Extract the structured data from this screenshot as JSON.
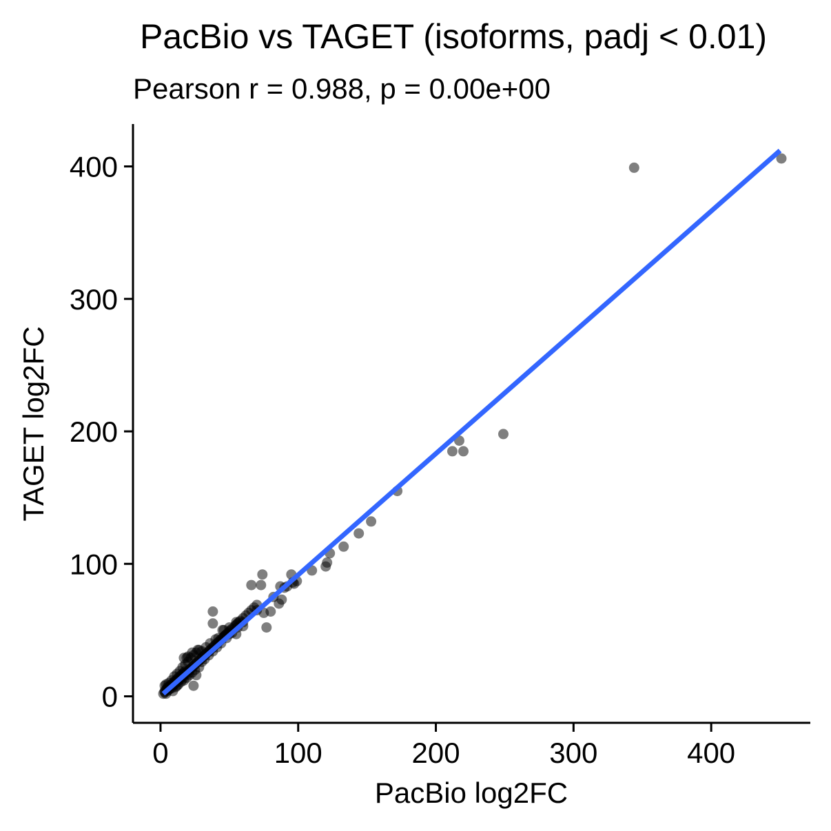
{
  "chart_data": {
    "type": "scatter",
    "title": "PacBio vs TAGET (isoforms, padj < 0.01)",
    "subtitle": "Pearson r = 0.988, p = 0.00e+00",
    "xlabel": "PacBio log2FC",
    "ylabel": "TAGET log2FC",
    "xlim": [
      -20,
      472
    ],
    "ylim": [
      -20,
      432
    ],
    "xticks": [
      0,
      100,
      200,
      300,
      400
    ],
    "yticks": [
      0,
      100,
      200,
      300,
      400
    ],
    "xtick_labels": [
      "0",
      "100",
      "200",
      "300",
      "400"
    ],
    "ytick_labels": [
      "0",
      "100",
      "200",
      "300",
      "400"
    ],
    "grid": false,
    "legend": "none",
    "point_color": "#000000",
    "point_opacity": 0.5,
    "fit_line": {
      "color": "#3366FF",
      "x": [
        2,
        450
      ],
      "y": [
        2,
        412
      ]
    },
    "points": [
      [
        2,
        2
      ],
      [
        3,
        3
      ],
      [
        3,
        4
      ],
      [
        4,
        2
      ],
      [
        4,
        5
      ],
      [
        5,
        4
      ],
      [
        5,
        6
      ],
      [
        6,
        5
      ],
      [
        6,
        7
      ],
      [
        7,
        6
      ],
      [
        7,
        8
      ],
      [
        8,
        6
      ],
      [
        8,
        9
      ],
      [
        9,
        8
      ],
      [
        9,
        10
      ],
      [
        10,
        9
      ],
      [
        10,
        11
      ],
      [
        11,
        10
      ],
      [
        11,
        12
      ],
      [
        12,
        11
      ],
      [
        12,
        13
      ],
      [
        13,
        12
      ],
      [
        13,
        14
      ],
      [
        14,
        13
      ],
      [
        14,
        15
      ],
      [
        15,
        14
      ],
      [
        15,
        16
      ],
      [
        16,
        15
      ],
      [
        16,
        17
      ],
      [
        17,
        16
      ],
      [
        17,
        18
      ],
      [
        18,
        17
      ],
      [
        18,
        19
      ],
      [
        19,
        18
      ],
      [
        20,
        19
      ],
      [
        21,
        20
      ],
      [
        22,
        21
      ],
      [
        23,
        22
      ],
      [
        24,
        23
      ],
      [
        25,
        24
      ],
      [
        26,
        25
      ],
      [
        27,
        26
      ],
      [
        28,
        27
      ],
      [
        29,
        28
      ],
      [
        30,
        29
      ],
      [
        31,
        30
      ],
      [
        32,
        31
      ],
      [
        33,
        32
      ],
      [
        34,
        33
      ],
      [
        35,
        34
      ],
      [
        36,
        35
      ],
      [
        37,
        36
      ],
      [
        38,
        37
      ],
      [
        39,
        38
      ],
      [
        40,
        39
      ],
      [
        41,
        40
      ],
      [
        42,
        41
      ],
      [
        43,
        42
      ],
      [
        44,
        43
      ],
      [
        45,
        44
      ],
      [
        46,
        45
      ],
      [
        47,
        46
      ],
      [
        48,
        47
      ],
      [
        49,
        48
      ],
      [
        50,
        49
      ],
      [
        51,
        50
      ],
      [
        52,
        51
      ],
      [
        54,
        53
      ],
      [
        55,
        54
      ],
      [
        57,
        56
      ],
      [
        58,
        57
      ],
      [
        60,
        59
      ],
      [
        62,
        61
      ],
      [
        64,
        63
      ],
      [
        66,
        65
      ],
      [
        68,
        67
      ],
      [
        70,
        69
      ],
      [
        3,
        8
      ],
      [
        4,
        9
      ],
      [
        5,
        7
      ],
      [
        6,
        10
      ],
      [
        8,
        12
      ],
      [
        10,
        15
      ],
      [
        12,
        17
      ],
      [
        14,
        19
      ],
      [
        16,
        22
      ],
      [
        18,
        24
      ],
      [
        20,
        26
      ],
      [
        22,
        29
      ],
      [
        24,
        31
      ],
      [
        26,
        33
      ],
      [
        28,
        35
      ],
      [
        17,
        29
      ],
      [
        19,
        29
      ],
      [
        20,
        30
      ],
      [
        23,
        33
      ],
      [
        27,
        35
      ],
      [
        30,
        34
      ],
      [
        33,
        37
      ],
      [
        36,
        40
      ],
      [
        40,
        43
      ],
      [
        42,
        44
      ],
      [
        46,
        50
      ],
      [
        50,
        52
      ],
      [
        55,
        56
      ],
      [
        56,
        55
      ],
      [
        9,
        4
      ],
      [
        11,
        7
      ],
      [
        13,
        9
      ],
      [
        15,
        11
      ],
      [
        17,
        12
      ],
      [
        19,
        14
      ],
      [
        21,
        16
      ],
      [
        23,
        18
      ],
      [
        25,
        20
      ],
      [
        28,
        22
      ],
      [
        30,
        26
      ],
      [
        32,
        28
      ],
      [
        35,
        31
      ],
      [
        38,
        34
      ],
      [
        41,
        37
      ],
      [
        44,
        40
      ],
      [
        48,
        44
      ],
      [
        52,
        48
      ],
      [
        56,
        52
      ],
      [
        60,
        56
      ],
      [
        12,
        8
      ],
      [
        16,
        13
      ],
      [
        20,
        17
      ],
      [
        24,
        8
      ],
      [
        26,
        16
      ],
      [
        38,
        64
      ],
      [
        38,
        55
      ],
      [
        45,
        50
      ],
      [
        47,
        46
      ],
      [
        50,
        47
      ],
      [
        55,
        47
      ],
      [
        60,
        53
      ],
      [
        66,
        84
      ],
      [
        73,
        84
      ],
      [
        74,
        92
      ],
      [
        70,
        65
      ],
      [
        75,
        63
      ],
      [
        77,
        52
      ],
      [
        80,
        64
      ],
      [
        82,
        75
      ],
      [
        86,
        70
      ],
      [
        87,
        83
      ],
      [
        88,
        73
      ],
      [
        90,
        82
      ],
      [
        92,
        83
      ],
      [
        95,
        92
      ],
      [
        96,
        86
      ],
      [
        97,
        85
      ],
      [
        99,
        87
      ],
      [
        110,
        95
      ],
      [
        120,
        98
      ],
      [
        121,
        101
      ],
      [
        123,
        108
      ],
      [
        133,
        113
      ],
      [
        144,
        123
      ],
      [
        153,
        132
      ],
      [
        172,
        155
      ],
      [
        212,
        185
      ],
      [
        217,
        193
      ],
      [
        220,
        185
      ],
      [
        249,
        198
      ],
      [
        344,
        399
      ],
      [
        451,
        406
      ]
    ]
  }
}
